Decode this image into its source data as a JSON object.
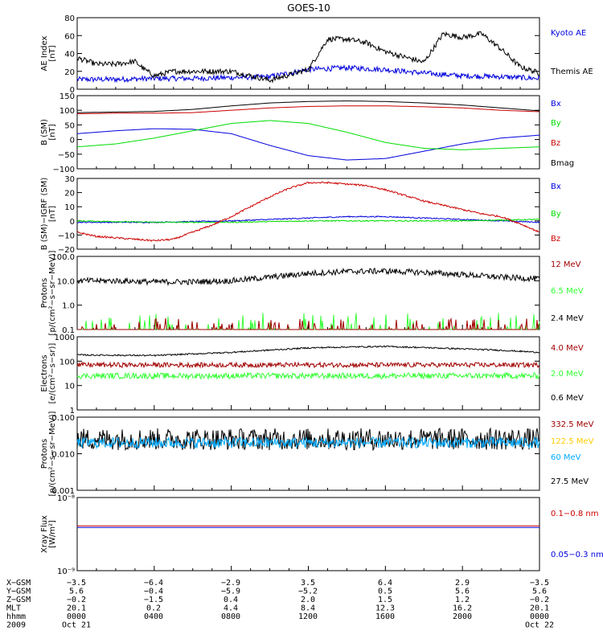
{
  "title": "GOES-10",
  "colors": {
    "black": "#000000",
    "blue": "#0000dd",
    "red": "#cc0000",
    "green": "#00dd00",
    "darkred": "#a00000",
    "lightgreen": "#33ff33",
    "yellow": "#ffcc00",
    "cyan": "#00aaff"
  },
  "chart_data": [
    {
      "type": "line",
      "id": "ae",
      "ylabel": [
        "AE Index",
        "[nT]"
      ],
      "ylim": [
        0,
        80
      ],
      "yticks": [
        0,
        20,
        40,
        60,
        80
      ],
      "ytick_labels": [
        "0",
        "20",
        "40",
        "60",
        "80"
      ],
      "legend": [
        {
          "name": "Kyoto AE",
          "color": "#0000dd"
        },
        {
          "name": "Themis AE",
          "color": "#000000"
        }
      ],
      "series": [
        {
          "name": "Kyoto AE",
          "color": "#0000dd",
          "noise": 3,
          "x": [
            0,
            2,
            4,
            6,
            8,
            10,
            12,
            14,
            16,
            18,
            20,
            22,
            24
          ],
          "y": [
            11,
            11,
            12,
            12,
            13,
            14,
            22,
            24,
            22,
            18,
            15,
            14,
            12
          ]
        },
        {
          "name": "Themis AE",
          "color": "#000000",
          "noise": 3,
          "x": [
            0,
            1,
            2,
            3,
            3.5,
            4,
            5,
            6,
            8,
            10,
            12,
            13,
            14,
            15,
            16,
            17,
            18,
            19,
            20,
            21,
            22,
            23,
            24
          ],
          "y": [
            35,
            28,
            28,
            31,
            22,
            15,
            20,
            20,
            20,
            10,
            22,
            56,
            56,
            52,
            42,
            36,
            30,
            62,
            58,
            62,
            45,
            25,
            18
          ]
        }
      ]
    },
    {
      "type": "line",
      "id": "b",
      "ylabel": [
        "B (SM)",
        "[nT]"
      ],
      "ylim": [
        -100,
        150
      ],
      "yticks": [
        -100,
        -50,
        0,
        50,
        100,
        150
      ],
      "ytick_labels": [
        "−100",
        "−50",
        "0",
        "50",
        "100",
        "150"
      ],
      "legend": [
        {
          "name": "Bx",
          "color": "#0000dd"
        },
        {
          "name": "By",
          "color": "#00dd00"
        },
        {
          "name": "Bz",
          "color": "#cc0000"
        },
        {
          "name": "Bmag",
          "color": "#000000"
        }
      ],
      "series": [
        {
          "name": "Bx",
          "color": "#0000dd",
          "noise": 0,
          "x": [
            0,
            2,
            4,
            6,
            8,
            10,
            12,
            14,
            16,
            18,
            20,
            22,
            24
          ],
          "y": [
            20,
            30,
            37,
            35,
            20,
            -20,
            -55,
            -70,
            -65,
            -40,
            -15,
            5,
            15
          ]
        },
        {
          "name": "By",
          "color": "#00dd00",
          "noise": 0,
          "x": [
            0,
            2,
            4,
            6,
            8,
            10,
            12,
            14,
            16,
            18,
            20,
            22,
            24
          ],
          "y": [
            -25,
            -15,
            5,
            30,
            55,
            65,
            55,
            25,
            -10,
            -30,
            -35,
            -30,
            -25
          ]
        },
        {
          "name": "Bz",
          "color": "#cc0000",
          "noise": 0,
          "x": [
            0,
            2,
            4,
            6,
            8,
            10,
            12,
            14,
            16,
            18,
            20,
            22,
            24
          ],
          "y": [
            88,
            90,
            90,
            92,
            100,
            108,
            113,
            115,
            115,
            112,
            108,
            100,
            95
          ]
        },
        {
          "name": "Bmag",
          "color": "#000000",
          "noise": 0,
          "x": [
            0,
            2,
            4,
            6,
            8,
            10,
            12,
            14,
            16,
            18,
            20,
            22,
            24
          ],
          "y": [
            92,
            94,
            96,
            103,
            115,
            125,
            130,
            132,
            130,
            125,
            118,
            108,
            98
          ]
        }
      ]
    },
    {
      "type": "line",
      "id": "bdiff",
      "ylabel": [
        "B (SM)−IGRF (SM)",
        "[nT]"
      ],
      "ylim": [
        -20,
        30
      ],
      "yticks": [
        -20,
        -10,
        0,
        10,
        20,
        30
      ],
      "ytick_labels": [
        "−20",
        "−10",
        "0",
        "10",
        "20",
        "30"
      ],
      "legend": [
        {
          "name": "Bx",
          "color": "#0000dd"
        },
        {
          "name": "By",
          "color": "#00dd00"
        },
        {
          "name": "Bz",
          "color": "#cc0000"
        }
      ],
      "series": [
        {
          "name": "Bx",
          "color": "#0000dd",
          "noise": 0.4,
          "x": [
            0,
            4,
            8,
            10,
            12,
            14,
            16,
            18,
            20,
            22,
            24
          ],
          "y": [
            -1,
            -1,
            0,
            1,
            2,
            3,
            3,
            2,
            1,
            0,
            -1
          ]
        },
        {
          "name": "By",
          "color": "#00dd00",
          "noise": 0.4,
          "x": [
            0,
            4,
            8,
            12,
            16,
            20,
            24
          ],
          "y": [
            0,
            -1,
            -1,
            0,
            0,
            0,
            1
          ]
        },
        {
          "name": "Bz",
          "color": "#cc0000",
          "noise": 0.6,
          "x": [
            0,
            1,
            2,
            3,
            4,
            5,
            6,
            7,
            8,
            9,
            10,
            11,
            12,
            13,
            14,
            15,
            16,
            17,
            18,
            19,
            20,
            21,
            22,
            23,
            24
          ],
          "y": [
            -8,
            -11,
            -12,
            -13,
            -14,
            -13,
            -8,
            -3,
            3,
            10,
            17,
            23,
            27,
            27,
            26,
            25,
            22,
            18,
            14,
            11,
            8,
            5,
            3,
            -2,
            -8
          ]
        }
      ]
    },
    {
      "type": "line",
      "id": "protons_low",
      "log": true,
      "ylabel": [
        "Protons",
        "[p/(cm²−s−sr−MeV)]"
      ],
      "ylim": [
        0.1,
        100
      ],
      "yticks": [
        0.1,
        1,
        10,
        100
      ],
      "ytick_labels": [
        "0.1",
        "1.0",
        "10.0",
        "100.0"
      ],
      "legend": [
        {
          "name": "12 MeV",
          "color": "#a00000"
        },
        {
          "name": "6.5 MeV",
          "color": "#33ff33"
        },
        {
          "name": "2.4 MeV",
          "color": "#000000"
        }
      ],
      "series": [
        {
          "name": "2.4 MeV",
          "color": "#000000",
          "noise": 0.12,
          "x": [
            0,
            2,
            4,
            6,
            8,
            10,
            12,
            14,
            16,
            18,
            20,
            22,
            24
          ],
          "y": [
            10,
            10,
            9,
            9,
            10,
            14,
            20,
            24,
            25,
            22,
            18,
            14,
            12
          ]
        },
        {
          "name": "6.5 MeV",
          "color": "#33ff33",
          "spikes": true,
          "base": 0.1,
          "max": 0.5,
          "x": [
            0,
            24
          ],
          "y": [
            0.1,
            0.1
          ]
        },
        {
          "name": "12 MeV",
          "color": "#a00000",
          "spikes": true,
          "base": 0.1,
          "max": 0.3,
          "x": [
            0,
            24
          ],
          "y": [
            0.1,
            0.1
          ]
        }
      ]
    },
    {
      "type": "line",
      "id": "electrons",
      "log": true,
      "ylabel": [
        "Electrons",
        "[e/(cm²−s−sr)]"
      ],
      "ylim": [
        1,
        1000
      ],
      "yticks": [
        1,
        10,
        100,
        1000
      ],
      "ytick_labels": [
        "1",
        "10",
        "100",
        "1000"
      ],
      "legend": [
        {
          "name": "4.0 MeV",
          "color": "#a00000"
        },
        {
          "name": "2.0 MeV",
          "color": "#33ff33"
        },
        {
          "name": "0.6 MeV",
          "color": "#000000"
        }
      ],
      "series": [
        {
          "name": "0.6 MeV",
          "color": "#000000",
          "noise": 0.03,
          "x": [
            0,
            4,
            8,
            12,
            14,
            16,
            18,
            20,
            22,
            24
          ],
          "y": [
            180,
            170,
            230,
            350,
            380,
            400,
            360,
            320,
            280,
            230
          ]
        },
        {
          "name": "4.0 MeV",
          "color": "#a00000",
          "noise": 0.1,
          "x": [
            0,
            24
          ],
          "y": [
            70,
            70
          ]
        },
        {
          "name": "2.0 MeV",
          "color": "#33ff33",
          "noise": 0.12,
          "x": [
            0,
            24
          ],
          "y": [
            25,
            25
          ]
        }
      ]
    },
    {
      "type": "line",
      "id": "protons_high",
      "log": true,
      "ylabel": [
        "Protons",
        "[p/(cm²−s−sr−MeV)]"
      ],
      "ylim": [
        0.001,
        0.1
      ],
      "yticks": [
        0.001,
        0.01,
        0.1
      ],
      "ytick_labels": [
        "0.001",
        "0.010",
        "0.100"
      ],
      "legend": [
        {
          "name": "332.5 MeV",
          "color": "#a00000"
        },
        {
          "name": "122.5 MeV",
          "color": "#ffcc00"
        },
        {
          "name": "60 MeV",
          "color": "#00aaff"
        },
        {
          "name": "27.5 MeV",
          "color": "#000000"
        }
      ],
      "series": [
        {
          "name": "27.5 MeV",
          "color": "#000000",
          "noise": 0.3,
          "x": [
            0,
            24
          ],
          "y": [
            0.025,
            0.025
          ]
        },
        {
          "name": "60 MeV",
          "color": "#00aaff",
          "noise": 0.15,
          "x": [
            0,
            24
          ],
          "y": [
            0.02,
            0.02
          ]
        }
      ]
    },
    {
      "type": "line",
      "id": "xray",
      "log": true,
      "ylabel": [
        "Xray Flux",
        "[W/m²]"
      ],
      "ylim": [
        1e-09,
        1e-08
      ],
      "yticks": [
        1e-09,
        1e-08
      ],
      "ytick_labels": [
        "10⁻⁹",
        "10⁻⁸"
      ],
      "legend": [
        {
          "name": "0.1−0.8 nm",
          "color": "#cc0000"
        },
        {
          "name": "0.05−0.3 nm",
          "color": "#0000dd"
        }
      ],
      "series": [
        {
          "name": "0.1−0.8 nm",
          "color": "#cc0000",
          "noise": 0,
          "x": [
            0,
            24
          ],
          "y": [
            4.1e-09,
            4.1e-09
          ]
        },
        {
          "name": "0.05−0.3 nm",
          "color": "#0000dd",
          "noise": 0,
          "x": [
            0,
            24
          ],
          "y": [
            3.9e-09,
            3.9e-09
          ]
        }
      ]
    }
  ],
  "orbit_table": {
    "rows": [
      {
        "label": "X−GSM",
        "values": [
          "−3.5",
          "−6.4",
          "−2.9",
          "3.5",
          "6.4",
          "2.9",
          "−3.5"
        ]
      },
      {
        "label": "Y−GSM",
        "values": [
          "5.6",
          "−0.4",
          "−5.9",
          "−5.2",
          "0.5",
          "5.6",
          "5.6"
        ]
      },
      {
        "label": "Z−GSM",
        "values": [
          "−0.2",
          "−1.5",
          "0.4",
          "2.0",
          "1.5",
          "1.2",
          "−0.2"
        ]
      },
      {
        "label": "MLT",
        "values": [
          "20.1",
          "0.2",
          "4.4",
          "8.4",
          "12.3",
          "16.2",
          "20.1"
        ]
      },
      {
        "label": "hhmm",
        "values": [
          "0000",
          "0400",
          "0800",
          "1200",
          "1600",
          "2000",
          "0000"
        ]
      },
      {
        "label": "2009",
        "values": [
          "Oct 21",
          "",
          "",
          "",
          "",
          "",
          "Oct 22"
        ]
      }
    ]
  }
}
